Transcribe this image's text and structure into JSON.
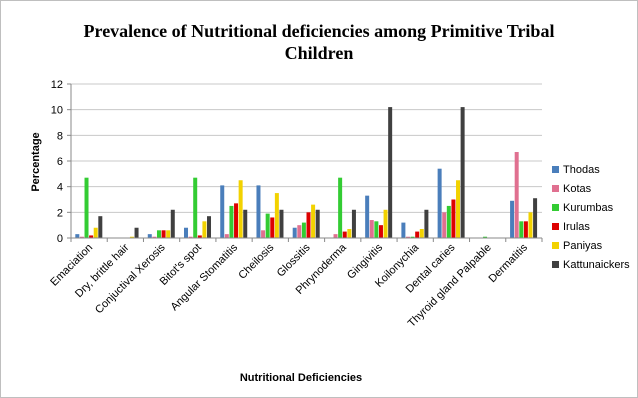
{
  "chart_data": {
    "type": "bar",
    "title": [
      "Prevalence of Nutritional deficiencies among Primitive Tribal",
      "Children"
    ],
    "xlabel": "Nutritional Deficiencies",
    "ylabel": "Percentage",
    "ylim": [
      0,
      12
    ],
    "yticks": [
      0,
      2,
      4,
      6,
      8,
      10,
      12
    ],
    "grid": true,
    "legend_position": "right",
    "categories": [
      "Emaciation",
      "Dry, brittle hair",
      "Conjuctival Xerosis",
      "Bitot's spot",
      "Angular Stomatitis",
      "Cheilosis",
      "Glossitis",
      "Phrynoderma",
      "Gingivitis",
      "Koilonychia",
      "Dental caries",
      "Thyroid gland Palpable",
      "Dermatitis"
    ],
    "series": [
      {
        "name": "Thodas",
        "color": "#4a7ebb",
        "values": [
          0.3,
          0,
          0.3,
          0.8,
          4.1,
          4.1,
          0.8,
          0,
          3.3,
          1.2,
          5.4,
          0,
          2.9
        ]
      },
      {
        "name": "Kotas",
        "color": "#e07090",
        "values": [
          0.1,
          0,
          0.1,
          0.1,
          0.3,
          0.6,
          1.0,
          0.3,
          1.4,
          0.1,
          2.0,
          0,
          6.7
        ]
      },
      {
        "name": "Kurumbas",
        "color": "#33cc33",
        "values": [
          4.7,
          0,
          0.6,
          4.7,
          2.5,
          1.9,
          1.2,
          4.7,
          1.3,
          0.1,
          2.5,
          0.1,
          1.3
        ]
      },
      {
        "name": "Irulas",
        "color": "#dd0000",
        "values": [
          0.2,
          0,
          0.6,
          0.2,
          2.7,
          1.6,
          2.0,
          0.5,
          1.0,
          0.5,
          3.0,
          0,
          1.3
        ]
      },
      {
        "name": "Paniyas",
        "color": "#f2d200",
        "values": [
          0.8,
          0.1,
          0.6,
          1.3,
          4.5,
          3.5,
          2.6,
          0.7,
          2.2,
          0.7,
          4.5,
          0,
          2.0
        ]
      },
      {
        "name": "Kattunaickers",
        "color": "#404040",
        "values": [
          1.7,
          0.8,
          2.2,
          1.7,
          2.2,
          2.2,
          2.2,
          2.2,
          10.2,
          2.2,
          10.2,
          0,
          3.1
        ]
      }
    ]
  }
}
